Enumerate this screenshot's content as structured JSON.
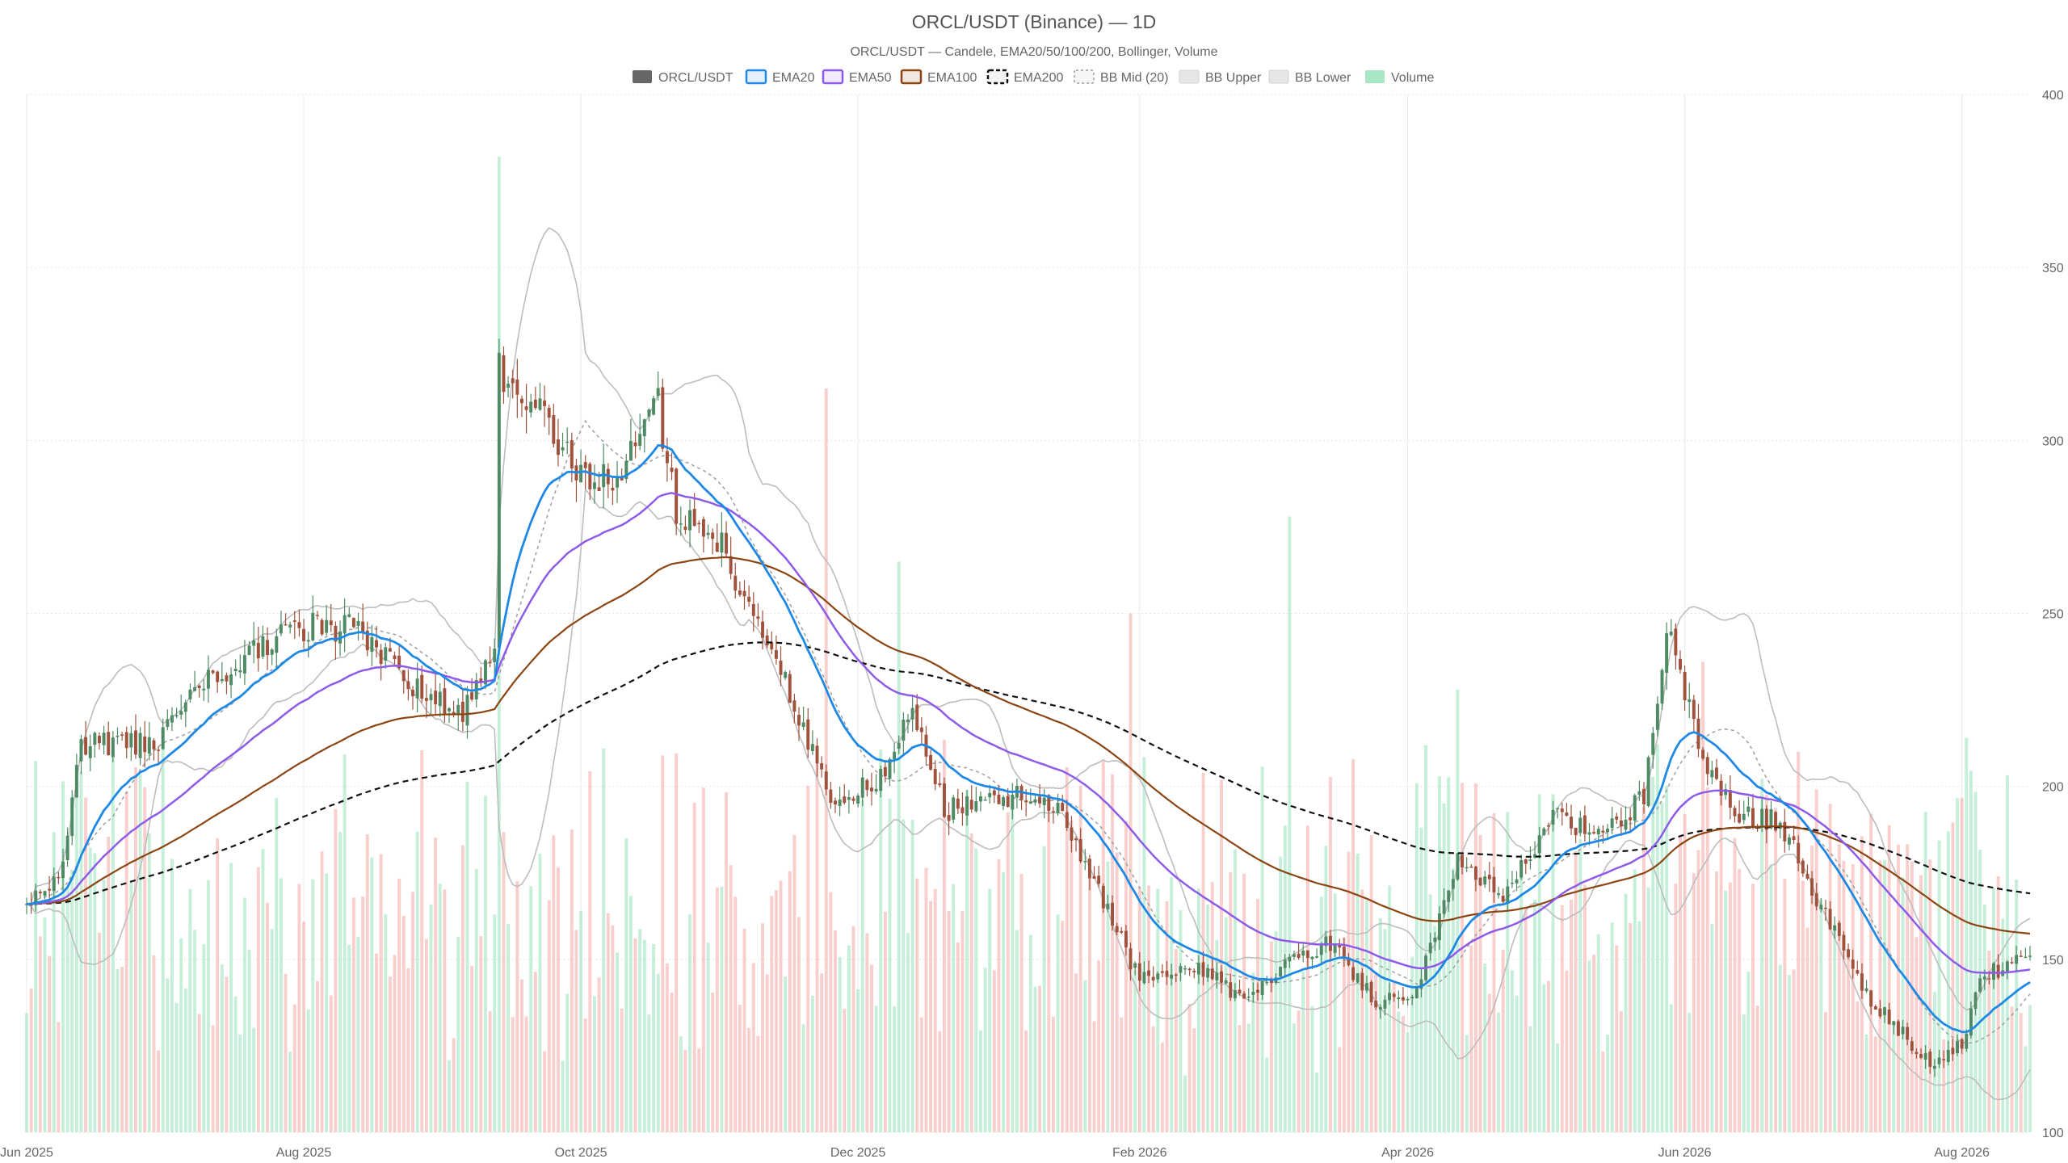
{
  "chart_data": {
    "type": "candlestick",
    "title": "ORCL/USDT (Binance) — 1D",
    "subtitle": "ORCL/USDT — Candele, EMA20/50/100/200, Bollinger, Volume",
    "legend_position": "top-center",
    "legend": [
      {
        "label": "ORCL/USDT",
        "kind": "solid",
        "color": "#666666"
      },
      {
        "label": "EMA20",
        "kind": "line",
        "color": "#1E88E5"
      },
      {
        "label": "EMA50",
        "kind": "line",
        "color": "#8E5BE8"
      },
      {
        "label": "EMA100",
        "kind": "line",
        "color": "#8B4513"
      },
      {
        "label": "EMA200",
        "kind": "dashed",
        "color": "#111111"
      },
      {
        "label": "BB Mid (20)",
        "kind": "dotted",
        "color": "#999999"
      },
      {
        "label": "BB Upper",
        "kind": "band",
        "color": "#BDBDBD"
      },
      {
        "label": "BB Lower",
        "kind": "band",
        "color": "#BDBDBD"
      },
      {
        "label": "Volume",
        "kind": "fill",
        "color": "#A8E6C4"
      }
    ],
    "x_axis": {
      "start": "2025-06-01",
      "end": "2026-08-16",
      "tick_labels": [
        "Jun 2025",
        "Aug 2025",
        "Oct 2025",
        "Dec 2025",
        "Feb 2026",
        "Apr 2026",
        "Jun 2026",
        "Aug 2026"
      ],
      "tick_dates": [
        "2025-06-01",
        "2025-08-01",
        "2025-10-01",
        "2025-12-01",
        "2026-02-01",
        "2026-04-01",
        "2026-06-01",
        "2026-08-01"
      ]
    },
    "y_axis": {
      "position": "right",
      "range": [
        100,
        400
      ],
      "ticks": [
        100,
        150,
        200,
        250,
        300,
        350,
        400
      ]
    },
    "grid": true,
    "colors": {
      "up": "#4E8A64",
      "down": "#A0523D",
      "vol_up": "#A8E6C4",
      "vol_down": "#F4B6B0"
    },
    "price_anchors": [
      [
        "2025-06-01",
        166
      ],
      [
        "2025-06-08",
        172
      ],
      [
        "2025-06-13",
        213
      ],
      [
        "2025-06-20",
        212
      ],
      [
        "2025-06-30",
        212
      ],
      [
        "2025-07-08",
        227
      ],
      [
        "2025-07-20",
        238
      ],
      [
        "2025-08-01",
        246
      ],
      [
        "2025-08-13",
        246
      ],
      [
        "2025-08-25",
        228
      ],
      [
        "2025-09-05",
        222
      ],
      [
        "2025-09-12",
        237
      ],
      [
        "2025-09-13",
        320
      ],
      [
        "2025-09-22",
        308
      ],
      [
        "2025-10-01",
        290
      ],
      [
        "2025-10-08",
        288
      ],
      [
        "2025-10-18",
        310
      ],
      [
        "2025-10-22",
        278
      ],
      [
        "2025-11-01",
        270
      ],
      [
        "2025-11-06",
        255
      ],
      [
        "2025-11-15",
        230
      ],
      [
        "2025-11-25",
        198
      ],
      [
        "2025-12-05",
        200
      ],
      [
        "2025-12-13",
        222
      ],
      [
        "2025-12-20",
        193
      ],
      [
        "2026-01-05",
        197
      ],
      [
        "2026-01-15",
        192
      ],
      [
        "2026-01-20",
        178
      ],
      [
        "2026-02-01",
        144
      ],
      [
        "2026-02-15",
        147
      ],
      [
        "2026-02-25",
        137
      ],
      [
        "2026-03-05",
        150
      ],
      [
        "2026-03-15",
        155
      ],
      [
        "2026-03-25",
        138
      ],
      [
        "2026-04-03",
        140
      ],
      [
        "2026-04-12",
        180
      ],
      [
        "2026-04-22",
        166
      ],
      [
        "2026-05-03",
        193
      ],
      [
        "2026-05-13",
        185
      ],
      [
        "2026-05-23",
        197
      ],
      [
        "2026-05-28",
        248
      ],
      [
        "2026-06-05",
        206
      ],
      [
        "2026-06-12",
        192
      ],
      [
        "2026-06-22",
        190
      ],
      [
        "2026-07-01",
        165
      ],
      [
        "2026-07-11",
        140
      ],
      [
        "2026-07-25",
        120
      ],
      [
        "2026-08-01",
        125
      ],
      [
        "2026-08-05",
        145
      ],
      [
        "2026-08-16",
        150
      ]
    ],
    "volume_spikes": [
      [
        "2025-09-13",
        382
      ],
      [
        "2025-11-24",
        315
      ],
      [
        "2025-12-10",
        265
      ],
      [
        "2026-01-30",
        250
      ],
      [
        "2026-03-06",
        278
      ],
      [
        "2026-04-12",
        228
      ],
      [
        "2026-06-05",
        236
      ]
    ]
  }
}
